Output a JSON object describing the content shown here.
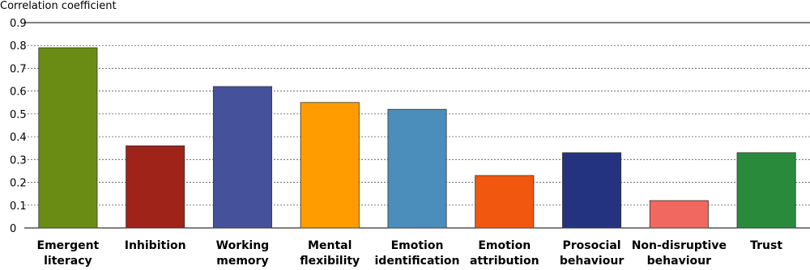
{
  "chart_data": {
    "type": "bar",
    "y_label": "Correlation coefficient",
    "categories": [
      "Emergent literacy",
      "Inhibition",
      "Working memory",
      "Mental flexibility",
      "Emotion identification",
      "Emotion attribution",
      "Prosocial behaviour",
      "Non-disruptive behaviour",
      "Trust"
    ],
    "values": [
      0.79,
      0.36,
      0.62,
      0.55,
      0.52,
      0.23,
      0.33,
      0.12,
      0.33
    ],
    "colors": [
      "#6a8c14",
      "#a0231a",
      "#46519b",
      "#ff9d00",
      "#4b8ebb",
      "#f2570f",
      "#233380",
      "#f0685f",
      "#2a8a3c"
    ],
    "ylim": [
      0,
      0.9
    ],
    "yticks": [
      0,
      0.1,
      0.2,
      0.3,
      0.4,
      0.5,
      0.6,
      0.7,
      0.8,
      0.9
    ],
    "grid": true
  }
}
